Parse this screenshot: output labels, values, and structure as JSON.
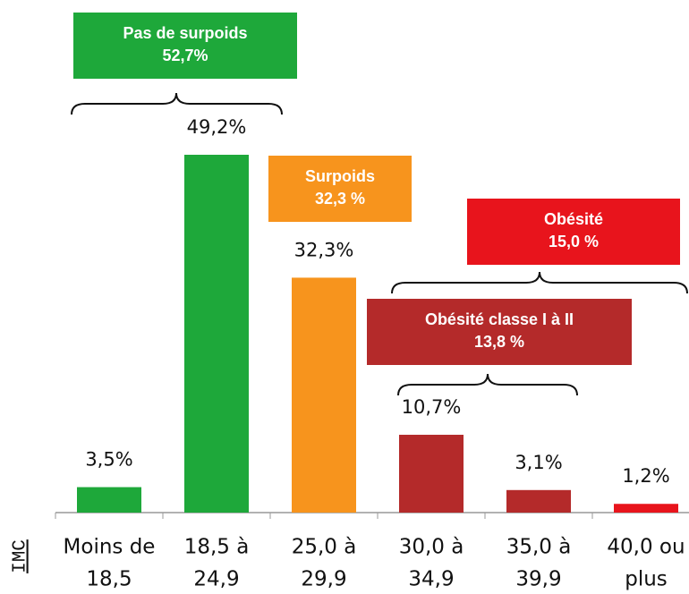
{
  "chart_data": {
    "type": "bar",
    "x_label": "IMC",
    "categories": [
      [
        "Moins de",
        "18,5"
      ],
      [
        "18,5 à",
        "24,9"
      ],
      [
        "25,0 à",
        "29,9"
      ],
      [
        "30,0 à",
        "34,9"
      ],
      [
        "35,0 à",
        "39,9"
      ],
      [
        "40,0 ou",
        "plus"
      ]
    ],
    "values": [
      3.5,
      49.2,
      32.3,
      10.7,
      3.1,
      1.2
    ],
    "value_labels": [
      "3,5%",
      "49,2%",
      "32,3%",
      "10,7%",
      "3,1%",
      "1,2%"
    ],
    "colors": [
      "#1ea83a",
      "#1ea83a",
      "#f7941d",
      "#b42a2a",
      "#b42a2a",
      "#e8141c"
    ],
    "annotations": [
      {
        "lines": [
          "Pas de surpoids",
          "52,7%"
        ],
        "color": "#1ea83a"
      },
      {
        "lines": [
          "Surpoids",
          "32,3 %"
        ],
        "color": "#f7941d"
      },
      {
        "lines": [
          "Obésité",
          "15,0 %"
        ],
        "color": "#e8141c"
      },
      {
        "lines": [
          "Obésité classe I à II",
          "13,8 %"
        ],
        "color": "#b42a2a"
      }
    ]
  }
}
